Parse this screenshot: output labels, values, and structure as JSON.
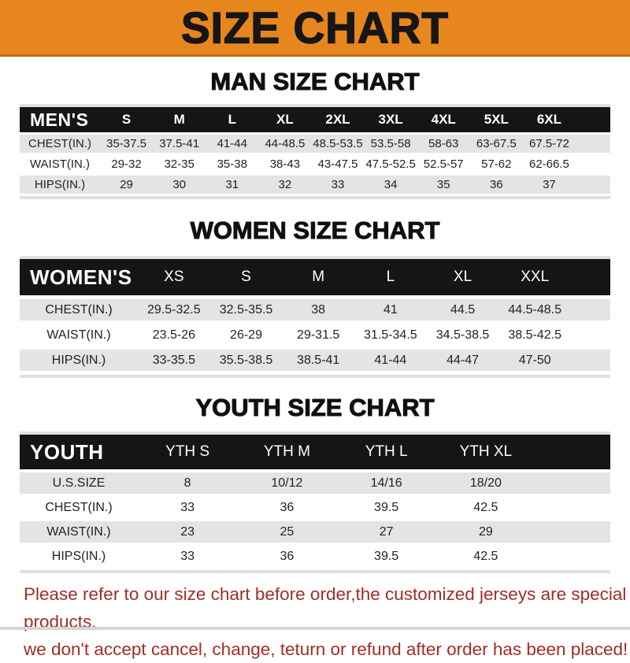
{
  "banner": {
    "title": "SIZE CHART"
  },
  "sections": {
    "men": {
      "title": "MAN SIZE CHART",
      "header_label": "MEN'S",
      "columns": [
        "S",
        "M",
        "L",
        "XL",
        "2XL",
        "3XL",
        "4XL",
        "5XL",
        "6XL"
      ],
      "rows": [
        {
          "label": "CHEST(IN.)",
          "values": [
            "35-37.5",
            "37.5-41",
            "41-44",
            "44-48.5",
            "48.5-53.5",
            "53.5-58",
            "58-63",
            "63-67.5",
            "67.5-72"
          ]
        },
        {
          "label": "WAIST(IN.)",
          "values": [
            "29-32",
            "32-35",
            "35-38",
            "38-43",
            "43-47.5",
            "47.5-52.5",
            "52.5-57",
            "57-62",
            "62-66.5"
          ]
        },
        {
          "label": "HIPS(IN.)",
          "values": [
            "29",
            "30",
            "31",
            "32",
            "33",
            "34",
            "35",
            "36",
            "37"
          ]
        }
      ]
    },
    "women": {
      "title": "WOMEN SIZE CHART",
      "header_label": "WOMEN'S",
      "columns": [
        "XS",
        "S",
        "M",
        "L",
        "XL",
        "XXL"
      ],
      "rows": [
        {
          "label": "CHEST(IN.)",
          "values": [
            "29.5-32.5",
            "32.5-35.5",
            "38",
            "41",
            "44.5",
            "44.5-48.5"
          ]
        },
        {
          "label": "WAIST(IN.)",
          "values": [
            "23.5-26",
            "26-29",
            "29-31.5",
            "31.5-34.5",
            "34.5-38.5",
            "38.5-42.5"
          ]
        },
        {
          "label": "HIPS(IN.)",
          "values": [
            "33-35.5",
            "35.5-38.5",
            "38.5-41",
            "41-44",
            "44-47",
            "47-50"
          ]
        }
      ]
    },
    "youth": {
      "title": "YOUTH SIZE CHART",
      "header_label": "YOUTH",
      "columns": [
        "YTH S",
        "YTH M",
        "YTH L",
        "YTH XL"
      ],
      "rows": [
        {
          "label": "U.S.SIZE",
          "values": [
            "8",
            "10/12",
            "14/16",
            "18/20"
          ]
        },
        {
          "label": "CHEST(IN.)",
          "values": [
            "33",
            "36",
            "39.5",
            "42.5"
          ]
        },
        {
          "label": "WAIST(IN.)",
          "values": [
            "23",
            "25",
            "27",
            "29"
          ]
        },
        {
          "label": "HIPS(IN.)",
          "values": [
            "33",
            "36",
            "39.5",
            "42.5"
          ]
        }
      ]
    }
  },
  "footer": {
    "line1": "Please refer to our size chart before order,the customized jerseys are special products,",
    "line2": "we don't accept cancel, change, teturn or refund after order has been placed!"
  },
  "colors": {
    "banner_orange": "#E8861E",
    "header_black": "#171513",
    "row_gray": "#E4E4E4",
    "footer_red": "#A02E26"
  }
}
